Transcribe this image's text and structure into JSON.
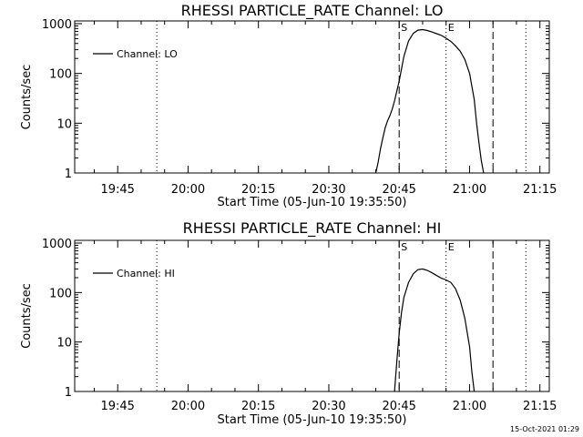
{
  "timestamp": "15-Oct-2021 01:29",
  "chart_data": [
    {
      "type": "line",
      "title": "RHESSI PARTICLE_RATE Channel: LO",
      "xlabel": "Start Time (05-Jun-10 19:35:50)",
      "ylabel": "Counts/sec",
      "yscale": "log",
      "ylim": [
        1,
        1000
      ],
      "xlim": [
        "19:35:50",
        "21:17:00"
      ],
      "xticks": [
        "19:45",
        "20:00",
        "20:15",
        "20:30",
        "20:45",
        "21:00",
        "21:15"
      ],
      "yticks": [
        "1",
        "10",
        "100",
        "1000"
      ],
      "legend": {
        "placement": "top-left",
        "label": "Channel: LO"
      },
      "series": [
        {
          "name": "Channel: LO",
          "color": "#000000",
          "x": [
            "20:40:00",
            "20:40:30",
            "20:41:00",
            "20:41:30",
            "20:42:00",
            "20:42:30",
            "20:43:00",
            "20:43:30",
            "20:44:00",
            "20:45:00",
            "20:46:00",
            "20:47:00",
            "20:48:00",
            "20:49:00",
            "20:50:00",
            "20:51:00",
            "20:52:00",
            "20:53:00",
            "20:54:00",
            "20:55:00",
            "20:56:00",
            "20:57:00",
            "20:58:00",
            "20:59:00",
            "21:00:00",
            "21:01:00",
            "21:01:30",
            "21:02:00",
            "21:02:30",
            "21:03:00"
          ],
          "y": [
            1,
            1.6,
            3,
            5,
            8,
            11,
            14,
            19,
            28,
            70,
            220,
            450,
            640,
            740,
            760,
            730,
            680,
            630,
            580,
            510,
            440,
            360,
            280,
            190,
            100,
            30,
            10,
            4,
            1.8,
            1
          ]
        }
      ],
      "vlines": [
        {
          "x": "19:53:20",
          "style": "dotted"
        },
        {
          "x": "20:45:00",
          "style": "dashed",
          "label": "S"
        },
        {
          "x": "20:55:00",
          "style": "dotted",
          "label": "E"
        },
        {
          "x": "21:05:00",
          "style": "dashed"
        },
        {
          "x": "21:12:00",
          "style": "dotted"
        }
      ]
    },
    {
      "type": "line",
      "title": "RHESSI PARTICLE_RATE Channel: HI",
      "xlabel": "Start Time (05-Jun-10 19:35:50)",
      "ylabel": "Counts/sec",
      "yscale": "log",
      "ylim": [
        1,
        1000
      ],
      "xlim": [
        "19:35:50",
        "21:17:00"
      ],
      "xticks": [
        "19:45",
        "20:00",
        "20:15",
        "20:30",
        "20:45",
        "21:00",
        "21:15"
      ],
      "yticks": [
        "1",
        "10",
        "100",
        "1000"
      ],
      "legend": {
        "placement": "top-left",
        "label": "Channel: HI"
      },
      "series": [
        {
          "name": "Channel: HI",
          "color": "#000000",
          "x": [
            "20:44:00",
            "20:44:30",
            "20:45:00",
            "20:45:30",
            "20:46:00",
            "20:47:00",
            "20:48:00",
            "20:49:00",
            "20:50:00",
            "20:51:00",
            "20:52:00",
            "20:53:00",
            "20:54:00",
            "20:55:00",
            "20:56:00",
            "20:57:00",
            "20:58:00",
            "20:59:00",
            "21:00:00",
            "21:00:30",
            "21:01:00"
          ],
          "y": [
            1,
            4,
            15,
            40,
            80,
            160,
            240,
            290,
            300,
            280,
            250,
            220,
            195,
            180,
            160,
            120,
            70,
            30,
            8,
            2.5,
            1
          ]
        }
      ],
      "vlines": [
        {
          "x": "19:53:20",
          "style": "dotted"
        },
        {
          "x": "20:45:00",
          "style": "dashed",
          "label": "S"
        },
        {
          "x": "20:55:00",
          "style": "dotted",
          "label": "E"
        },
        {
          "x": "21:05:00",
          "style": "dashed"
        },
        {
          "x": "21:12:00",
          "style": "dotted"
        }
      ]
    }
  ]
}
